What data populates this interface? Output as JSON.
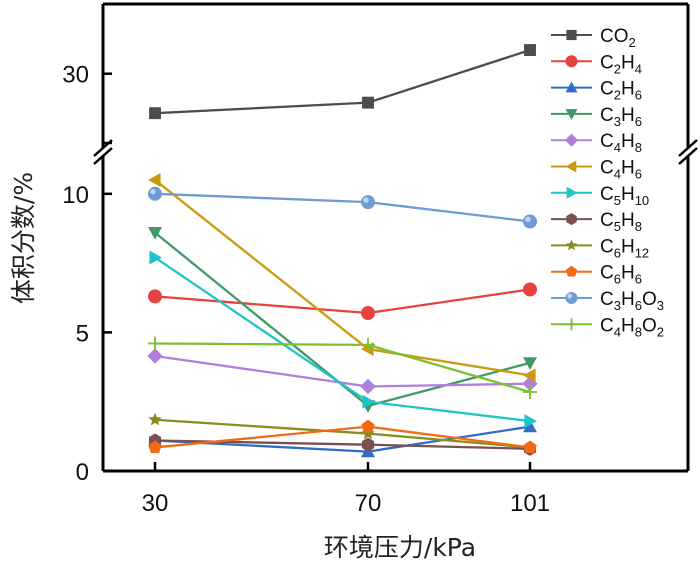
{
  "chart_data": {
    "type": "line",
    "title": "",
    "xlabel": "环境压力/kPa",
    "ylabel": "体积分数/%",
    "x": [
      30,
      70,
      101
    ],
    "x_tick_labels": [
      "30",
      "70",
      "101"
    ],
    "y_axis_broken": true,
    "y_lower_range": [
      0,
      11.4
    ],
    "y_upper_range": [
      24.2,
      35.3
    ],
    "y_lower_ticks": [
      "0",
      "5",
      "10"
    ],
    "y_upper_ticks": [
      "30"
    ],
    "grid": false,
    "legend_position": "right",
    "series": [
      {
        "name": "CO2",
        "label_parts": [
          [
            "C",
            ""
          ],
          [
            "O",
            ""
          ],
          [
            "",
            "2"
          ]
        ],
        "color": "#4d4d4d",
        "marker": "square",
        "values": [
          27.0,
          27.8,
          31.8
        ]
      },
      {
        "name": "C2H4",
        "label_parts": [
          [
            "C",
            "2"
          ],
          [
            "H",
            "4"
          ]
        ],
        "color": "#e8413f",
        "marker": "circle",
        "values": [
          6.3,
          5.7,
          6.55
        ]
      },
      {
        "name": "C2H6",
        "label_parts": [
          [
            "C",
            "2"
          ],
          [
            "H",
            "6"
          ]
        ],
        "color": "#2f6dc7",
        "marker": "triangle-up",
        "values": [
          1.1,
          0.7,
          1.6
        ]
      },
      {
        "name": "C3H6",
        "label_parts": [
          [
            "C",
            "3"
          ],
          [
            "H",
            "6"
          ]
        ],
        "color": "#3f9a66",
        "marker": "triangle-down",
        "values": [
          8.6,
          2.35,
          3.9
        ]
      },
      {
        "name": "C4H8",
        "label_parts": [
          [
            "C",
            "4"
          ],
          [
            "H",
            "8"
          ]
        ],
        "color": "#b07fdc",
        "marker": "diamond",
        "values": [
          4.15,
          3.05,
          3.15
        ]
      },
      {
        "name": "C4H6",
        "label_parts": [
          [
            "C",
            "4"
          ],
          [
            "H",
            "6"
          ]
        ],
        "color": "#c99a10",
        "marker": "triangle-left",
        "values": [
          10.5,
          4.4,
          3.45
        ]
      },
      {
        "name": "C5H10",
        "label_parts": [
          [
            "C",
            "5"
          ],
          [
            "H",
            "10"
          ]
        ],
        "color": "#1fc4c4",
        "marker": "triangle-right",
        "values": [
          7.7,
          2.5,
          1.8
        ]
      },
      {
        "name": "C5H8",
        "label_parts": [
          [
            "C",
            "5"
          ],
          [
            "H",
            "8"
          ]
        ],
        "color": "#7a4f4f",
        "marker": "hexagon",
        "values": [
          1.1,
          0.95,
          0.8
        ]
      },
      {
        "name": "C6H12",
        "label_parts": [
          [
            "C",
            "6"
          ],
          [
            "H",
            "12"
          ]
        ],
        "color": "#8c8c1e",
        "marker": "star",
        "values": [
          1.85,
          1.35,
          0.85
        ]
      },
      {
        "name": "C6H6",
        "label_parts": [
          [
            "C",
            "6"
          ],
          [
            "H",
            "6"
          ]
        ],
        "color": "#f26a12",
        "marker": "pentagon",
        "values": [
          0.85,
          1.6,
          0.85
        ]
      },
      {
        "name": "C3H6O3",
        "label_parts": [
          [
            "C",
            "3"
          ],
          [
            "H",
            "6"
          ],
          [
            "O",
            "3"
          ]
        ],
        "color": "#6f9bd3",
        "marker": "sphere",
        "values": [
          10.0,
          9.7,
          9.0
        ]
      },
      {
        "name": "C4H8O2",
        "label_parts": [
          [
            "C",
            "4"
          ],
          [
            "H",
            "8"
          ],
          [
            "O",
            "2"
          ]
        ],
        "color": "#7cbf2f",
        "marker": "plus",
        "values": [
          4.6,
          4.55,
          2.85
        ]
      }
    ]
  }
}
